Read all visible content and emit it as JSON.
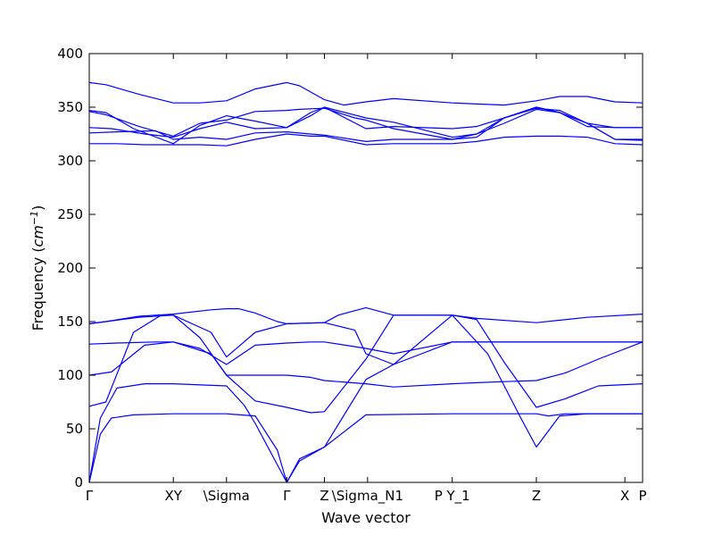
{
  "chart_data": {
    "type": "line",
    "title": "",
    "xlabel": "Wave vector",
    "ylabel": {
      "prefix": "Frequency (",
      "unit": "cm",
      "exponent": "−1",
      "suffix": ")"
    },
    "ylim": [
      0,
      400
    ],
    "yticks": [
      0,
      50,
      100,
      150,
      200,
      250,
      300,
      350,
      400
    ],
    "grid": false,
    "legend": "none",
    "colors": {
      "line": "#0000ff",
      "axes": "#000000",
      "background": "#ffffff"
    },
    "high_symmetry_points": [
      {
        "label": "Γ",
        "k": 0.0
      },
      {
        "label": "XY",
        "k": 0.152
      },
      {
        "label": "\\Sigma",
        "k": 0.248
      },
      {
        "label": "Γ",
        "k": 0.357
      },
      {
        "label": "Z",
        "k": 0.425
      },
      {
        "label": "\\Sigma_N1",
        "k": 0.503
      },
      {
        "label": "P Y_1",
        "k": 0.656
      },
      {
        "label": "Z",
        "k": 0.808
      },
      {
        "label": "X",
        "k": 0.968
      },
      {
        "label": "P",
        "k": 1.0
      }
    ],
    "series": [
      {
        "k": [
          0,
          0.02,
          0.04,
          0.08,
          0.152,
          0.248,
          0.3,
          0.34,
          0.357,
          0.38,
          0.425,
          0.5,
          0.656,
          0.8,
          0.808,
          0.83,
          0.86,
          1.0
        ],
        "values": [
          0,
          45,
          60,
          63,
          64,
          64,
          62,
          30,
          0,
          20,
          33,
          63,
          64,
          64,
          64,
          62,
          64,
          64
        ]
      },
      {
        "k": [
          0,
          0.02,
          0.05,
          0.1,
          0.152,
          0.248,
          0.28,
          0.3,
          0.357,
          0.38,
          0.425,
          0.5,
          0.55,
          0.656,
          0.72,
          0.78,
          0.808,
          0.85,
          0.9,
          1.0
        ],
        "values": [
          0,
          60,
          88,
          92,
          92,
          90,
          72,
          55,
          0,
          22,
          33,
          96,
          110,
          156,
          120,
          60,
          33,
          62,
          64,
          64
        ]
      },
      {
        "k": [
          0,
          0.03,
          0.08,
          0.13,
          0.152,
          0.2,
          0.248,
          0.3,
          0.357,
          0.4,
          0.425,
          0.5,
          0.55,
          0.656,
          0.7,
          0.75,
          0.808,
          0.86,
          0.92,
          1.0
        ],
        "values": [
          71,
          75,
          140,
          156,
          156,
          135,
          100,
          76,
          70,
          65,
          66,
          115,
          156,
          156,
          152,
          112,
          70,
          78,
          90,
          92
        ]
      },
      {
        "k": [
          0,
          0.04,
          0.1,
          0.152,
          0.22,
          0.248,
          0.3,
          0.357,
          0.4,
          0.425,
          0.5,
          0.55,
          0.656,
          0.7,
          0.75,
          0.808,
          0.86,
          0.92,
          1.0
        ],
        "values": [
          100,
          103,
          128,
          131,
          120,
          100,
          100,
          100,
          98,
          95,
          92,
          89,
          92,
          93,
          94,
          95,
          102,
          115,
          131
        ]
      },
      {
        "k": [
          0,
          0.05,
          0.12,
          0.152,
          0.2,
          0.248,
          0.3,
          0.357,
          0.4,
          0.425,
          0.5,
          0.55,
          0.656,
          0.7,
          0.78,
          0.808,
          0.9,
          1.0
        ],
        "values": [
          129,
          130,
          131,
          131,
          125,
          110,
          128,
          130,
          131,
          131,
          125,
          120,
          131,
          131,
          131,
          131,
          131,
          131
        ]
      },
      {
        "k": [
          0,
          0.03,
          0.09,
          0.152,
          0.22,
          0.248,
          0.3,
          0.357,
          0.425,
          0.48,
          0.5,
          0.55,
          0.656,
          0.7,
          0.808,
          0.9,
          1.0
        ],
        "values": [
          148,
          150,
          154,
          156,
          140,
          117,
          140,
          148,
          149,
          142,
          120,
          110,
          131,
          131,
          131,
          131,
          131
        ]
      },
      {
        "k": [
          0,
          0.03,
          0.09,
          0.152,
          0.22,
          0.248,
          0.27,
          0.3,
          0.34,
          0.357,
          0.425,
          0.45,
          0.5,
          0.55,
          0.656,
          0.7,
          0.808,
          0.9,
          1.0
        ],
        "values": [
          148,
          150,
          155,
          157,
          161,
          162,
          162,
          158,
          150,
          148,
          149,
          156,
          163,
          156,
          156,
          153,
          149,
          154,
          157
        ]
      },
      {
        "k": [
          0,
          0.05,
          0.1,
          0.152,
          0.2,
          0.248,
          0.3,
          0.357,
          0.4,
          0.425,
          0.5,
          0.55,
          0.656,
          0.7,
          0.75,
          0.808,
          0.85,
          0.9,
          0.95,
          1.0
        ],
        "values": [
          316,
          316,
          315,
          315,
          315,
          314,
          320,
          325,
          323,
          323,
          315,
          316,
          316,
          318,
          322,
          323,
          323,
          322,
          316,
          315
        ]
      },
      {
        "k": [
          0,
          0.05,
          0.12,
          0.152,
          0.2,
          0.248,
          0.3,
          0.357,
          0.4,
          0.425,
          0.5,
          0.55,
          0.656,
          0.7,
          0.75,
          0.808,
          0.85,
          0.9,
          0.95,
          1.0
        ],
        "values": [
          326,
          327,
          328,
          320,
          322,
          320,
          326,
          327,
          325,
          324,
          318,
          320,
          320,
          325,
          335,
          348,
          345,
          335,
          320,
          320
        ]
      },
      {
        "k": [
          0,
          0.04,
          0.1,
          0.152,
          0.2,
          0.248,
          0.3,
          0.357,
          0.4,
          0.425,
          0.5,
          0.55,
          0.656,
          0.7,
          0.75,
          0.808,
          0.85,
          0.9,
          0.95,
          1.0
        ],
        "values": [
          331,
          330,
          325,
          322,
          330,
          336,
          330,
          331,
          342,
          350,
          340,
          336,
          322,
          325,
          340,
          350,
          345,
          335,
          331,
          331
        ]
      },
      {
        "k": [
          0,
          0.03,
          0.08,
          0.152,
          0.2,
          0.248,
          0.3,
          0.357,
          0.4,
          0.425,
          0.5,
          0.55,
          0.656,
          0.7,
          0.75,
          0.808,
          0.85,
          0.9,
          0.95,
          1.0
        ],
        "values": [
          347,
          345,
          330,
          316,
          333,
          342,
          337,
          331,
          345,
          350,
          330,
          332,
          330,
          332,
          340,
          350,
          345,
          332,
          331,
          331
        ]
      },
      {
        "k": [
          0,
          0.03,
          0.09,
          0.152,
          0.2,
          0.248,
          0.3,
          0.357,
          0.38,
          0.425,
          0.48,
          0.5,
          0.55,
          0.656,
          0.7,
          0.75,
          0.808,
          0.85,
          0.9,
          0.95,
          1.0
        ],
        "values": [
          346,
          343,
          332,
          323,
          335,
          338,
          346,
          347,
          348,
          349,
          340,
          338,
          330,
          320,
          322,
          340,
          349,
          347,
          335,
          320,
          319
        ]
      },
      {
        "k": [
          0,
          0.03,
          0.09,
          0.152,
          0.2,
          0.248,
          0.3,
          0.357,
          0.38,
          0.425,
          0.46,
          0.5,
          0.55,
          0.656,
          0.7,
          0.75,
          0.808,
          0.85,
          0.9,
          0.95,
          1.0
        ],
        "values": [
          373,
          371,
          362,
          354,
          354,
          356,
          367,
          373,
          370,
          357,
          352,
          355,
          358,
          354,
          353,
          352,
          356,
          360,
          360,
          355,
          354
        ]
      }
    ]
  }
}
